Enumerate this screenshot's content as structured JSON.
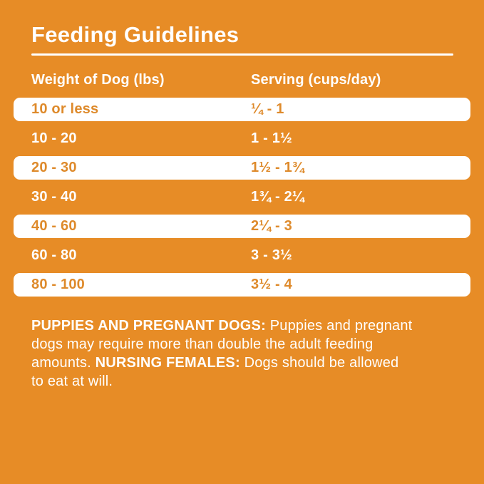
{
  "colors": {
    "background_orange": "#E78C26",
    "row_text_orange": "#DE8A2B",
    "text_white": "#FFFFFF"
  },
  "title": "Feeding Guidelines",
  "table": {
    "columns": [
      "Weight of Dog (lbs)",
      "Serving (cups/day)"
    ],
    "rows": [
      {
        "weight": "10 or less",
        "serving": "¼ - 1"
      },
      {
        "weight": "10 - 20",
        "serving": "1 - 1½"
      },
      {
        "weight": "20 - 30",
        "serving": "1½ - 1¾"
      },
      {
        "weight": "30 - 40",
        "serving": "1¾ - 2¼"
      },
      {
        "weight": "40 - 60",
        "serving": "2¼ - 3"
      },
      {
        "weight": "60 - 80",
        "serving": "3 - 3½"
      },
      {
        "weight": "80 - 100",
        "serving": "3½ - 4"
      }
    ]
  },
  "notes": {
    "line1_bold": "PUPPIES AND PREGNANT DOGS:",
    "line1_rest": " Puppies and pregnant",
    "line2": "dogs may require more than double the adult feeding",
    "line3_pre": "amounts. ",
    "line3_bold": "NURSING FEMALES:",
    "line3_rest": " Dogs should be allowed",
    "line4": "to eat at will."
  }
}
